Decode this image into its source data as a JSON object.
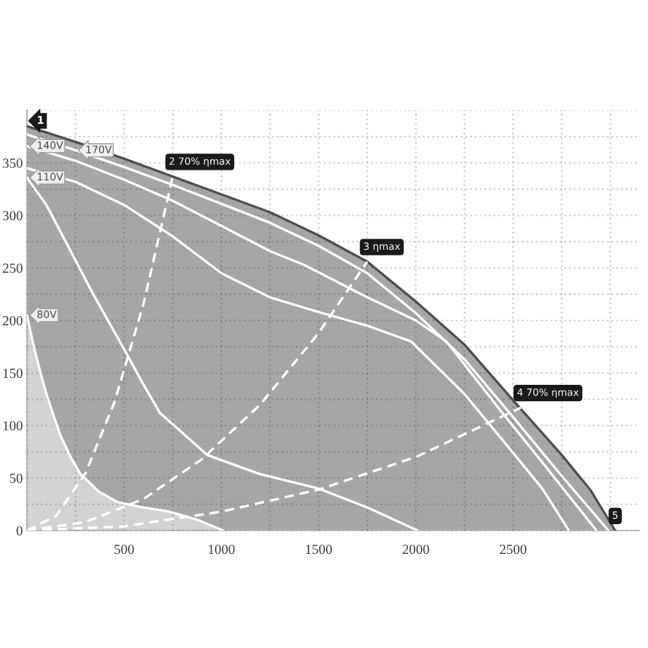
{
  "chart_data": {
    "type": "line",
    "xlim": [
      0,
      3150
    ],
    "ylim": [
      0,
      400
    ],
    "xticks": [
      {
        "value": 0,
        "label": null
      },
      {
        "value": 250,
        "label": null
      },
      500,
      {
        "value": 750,
        "label": null
      },
      1000,
      {
        "value": 1250,
        "label": null
      },
      1500,
      {
        "value": 1750,
        "label": null
      },
      2000,
      {
        "value": 2250,
        "label": null
      },
      2500,
      {
        "value": 2750,
        "label": null
      },
      {
        "value": 3000,
        "label": null
      }
    ],
    "yticks": [
      0,
      {
        "value": 25,
        "label": null
      },
      50,
      {
        "value": 75,
        "label": null
      },
      100,
      {
        "value": 125,
        "label": null
      },
      150,
      {
        "value": 175,
        "label": null
      },
      200,
      {
        "value": 225,
        "label": null
      },
      250,
      {
        "value": 275,
        "label": null
      },
      300,
      {
        "value": 325,
        "label": null
      },
      350,
      {
        "value": 375,
        "label": null
      },
      {
        "value": 400,
        "label": null
      }
    ],
    "grid": true,
    "series": [
      {
        "type": "area",
        "color": "#4d4d4d",
        "x": [
          0,
          250,
          500,
          750,
          1000,
          1250,
          1500,
          1750,
          2000,
          2250,
          2500,
          2750,
          2900,
          3025
        ],
        "values": [
          385,
          370,
          354,
          337,
          320,
          303,
          281,
          256,
          218,
          177,
          124,
          72,
          38,
          0
        ]
      },
      {
        "name": "170V",
        "color": "#ffffff",
        "x": [
          0,
          250,
          500,
          750,
          1000,
          1250,
          1500,
          1750,
          2000,
          2250,
          2500,
          2750,
          2990
        ],
        "values": [
          377,
          362,
          346,
          329,
          311,
          293,
          271,
          245,
          207,
          163,
          108,
          52,
          0
        ]
      },
      {
        "name": "140V",
        "color": "#ffffff",
        "x": [
          0,
          250,
          500,
          750,
          1000,
          1250,
          1424,
          1750,
          2000,
          2157,
          2432,
          2650,
          2929
        ],
        "values": [
          366,
          352,
          334,
          314,
          290,
          266,
          253,
          222,
          200,
          180,
          115,
          65,
          0
        ]
      },
      {
        "color": "#ffffff",
        "x": [
          0,
          250,
          500,
          750,
          1000,
          1250,
          1500,
          1750,
          1976,
          2250,
          2500,
          2650,
          2787
        ],
        "values": [
          345,
          332,
          310,
          280,
          245,
          222,
          208,
          195,
          180,
          130,
          74,
          40,
          0
        ]
      },
      {
        "name": "110V",
        "color": "#ffffff",
        "x": [
          0,
          100,
          177,
          344,
          514,
          587,
          684,
          927,
          1195,
          1500,
          1750,
          2010
        ],
        "values": [
          336,
          310,
          283,
          224,
          168,
          143,
          112,
          72,
          54,
          40,
          22,
          0
        ]
      },
      {
        "type": "area",
        "name": "80V",
        "color": "#ffffff",
        "x": [
          0,
          40,
          76,
          104,
          140,
          174,
          225,
          275,
          370,
          468,
          600,
          735,
          880,
          1010
        ],
        "values": [
          205,
          172,
          146,
          128,
          108,
          90,
          70,
          54,
          37,
          27,
          22,
          18,
          10,
          0
        ]
      },
      {
        "line_style": "dashed",
        "color": "#ffffff",
        "x": [
          0,
          150,
          300,
          450,
          600,
          750
        ],
        "values": [
          0,
          14,
          54,
          122,
          216,
          337
        ]
      },
      {
        "line_style": "dashed",
        "color": "#ffffff",
        "x": [
          0,
          300,
          600,
          900,
          1200,
          1500,
          1750
        ],
        "values": [
          0,
          8,
          30,
          68,
          120,
          188,
          256
        ]
      },
      {
        "line_style": "dashed",
        "color": "#ffffff",
        "x": [
          0,
          500,
          1000,
          1500,
          2000,
          2540
        ],
        "values": [
          0,
          4,
          18,
          39,
          70,
          117
        ]
      }
    ],
    "annotations": [
      {
        "text": "1",
        "x": 0,
        "y": 390
      },
      {
        "text": "2 70% ηmax",
        "x": 750,
        "y": 337
      },
      {
        "text": "3 ηmax",
        "x": 1750,
        "y": 256
      },
      {
        "text": "4 70% ηmax",
        "x": 2540,
        "y": 117
      },
      {
        "text": "5",
        "x": 3025,
        "y": 0
      }
    ]
  }
}
